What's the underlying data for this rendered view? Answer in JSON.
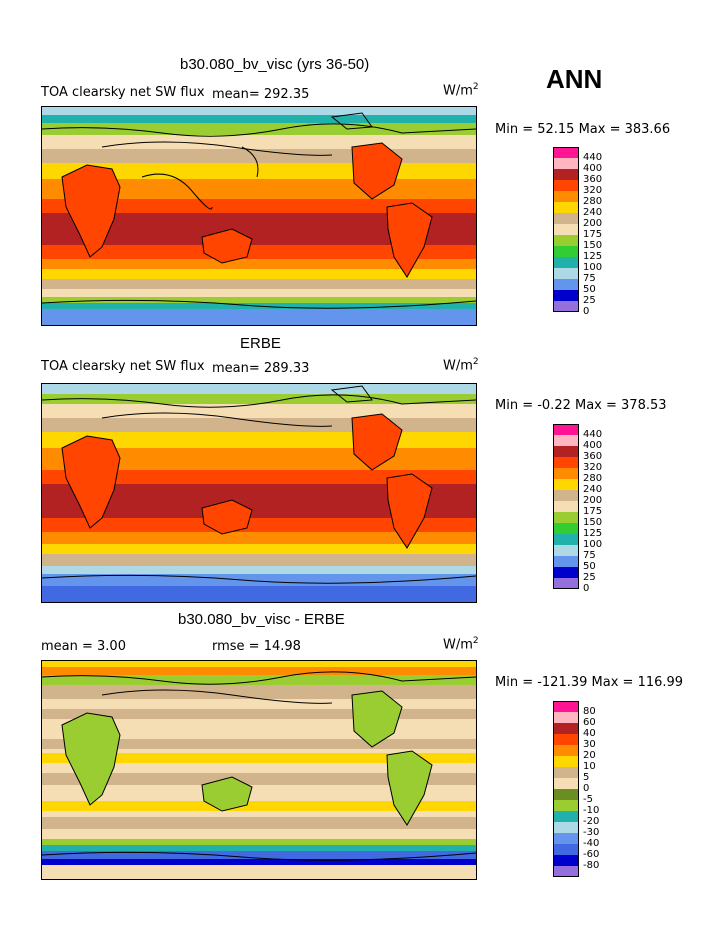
{
  "season": "ANN",
  "units_base": "W/m",
  "units_exp": "2",
  "panels": [
    {
      "title": "b30.080_bv_visc (yrs 36-50)",
      "left_label": "TOA clearsky net SW flux",
      "stat_label": "mean= 292.35",
      "minmax": "Min =  52.15 Max = 383.66",
      "levels": [
        "440",
        "400",
        "360",
        "320",
        "280",
        "240",
        "200",
        "175",
        "150",
        "125",
        "100",
        "75",
        "50",
        "25",
        "0"
      ],
      "colors": [
        "#ff1493",
        "#ffb6c1",
        "#b22222",
        "#ff4500",
        "#ff8c00",
        "#ffd700",
        "#d2b48c",
        "#f5deb3",
        "#9acd32",
        "#32cd32",
        "#20b2aa",
        "#add8e6",
        "#6495ed",
        "#0000cd",
        "#9370db"
      ]
    },
    {
      "title": "ERBE",
      "left_label": "TOA clearsky net SW flux",
      "stat_label": "mean= 289.33",
      "minmax": "Min =  -0.22 Max = 378.53",
      "levels": [
        "440",
        "400",
        "360",
        "320",
        "280",
        "240",
        "200",
        "175",
        "150",
        "125",
        "100",
        "75",
        "50",
        "25",
        "0"
      ],
      "colors": [
        "#ff1493",
        "#ffb6c1",
        "#b22222",
        "#ff4500",
        "#ff8c00",
        "#ffd700",
        "#d2b48c",
        "#f5deb3",
        "#9acd32",
        "#32cd32",
        "#20b2aa",
        "#add8e6",
        "#6495ed",
        "#0000cd",
        "#9370db"
      ]
    },
    {
      "title": "b30.080_bv_visc - ERBE",
      "left_label": "mean =    3.00",
      "stat_label": "rmse =   14.98",
      "minmax": "Min = -121.39 Max = 116.99",
      "levels": [
        "80",
        "60",
        "40",
        "30",
        "20",
        "10",
        "5",
        "0",
        "-5",
        "-10",
        "-20",
        "-30",
        "-40",
        "-60",
        "-80"
      ],
      "colors": [
        "#ff1493",
        "#ffb6c1",
        "#b22222",
        "#ff4500",
        "#ff8c00",
        "#ffd700",
        "#d2b48c",
        "#f5deb3",
        "#6b8e23",
        "#9acd32",
        "#20b2aa",
        "#add8e6",
        "#6495ed",
        "#4169e1",
        "#0000cd",
        "#9370db"
      ]
    }
  ]
}
